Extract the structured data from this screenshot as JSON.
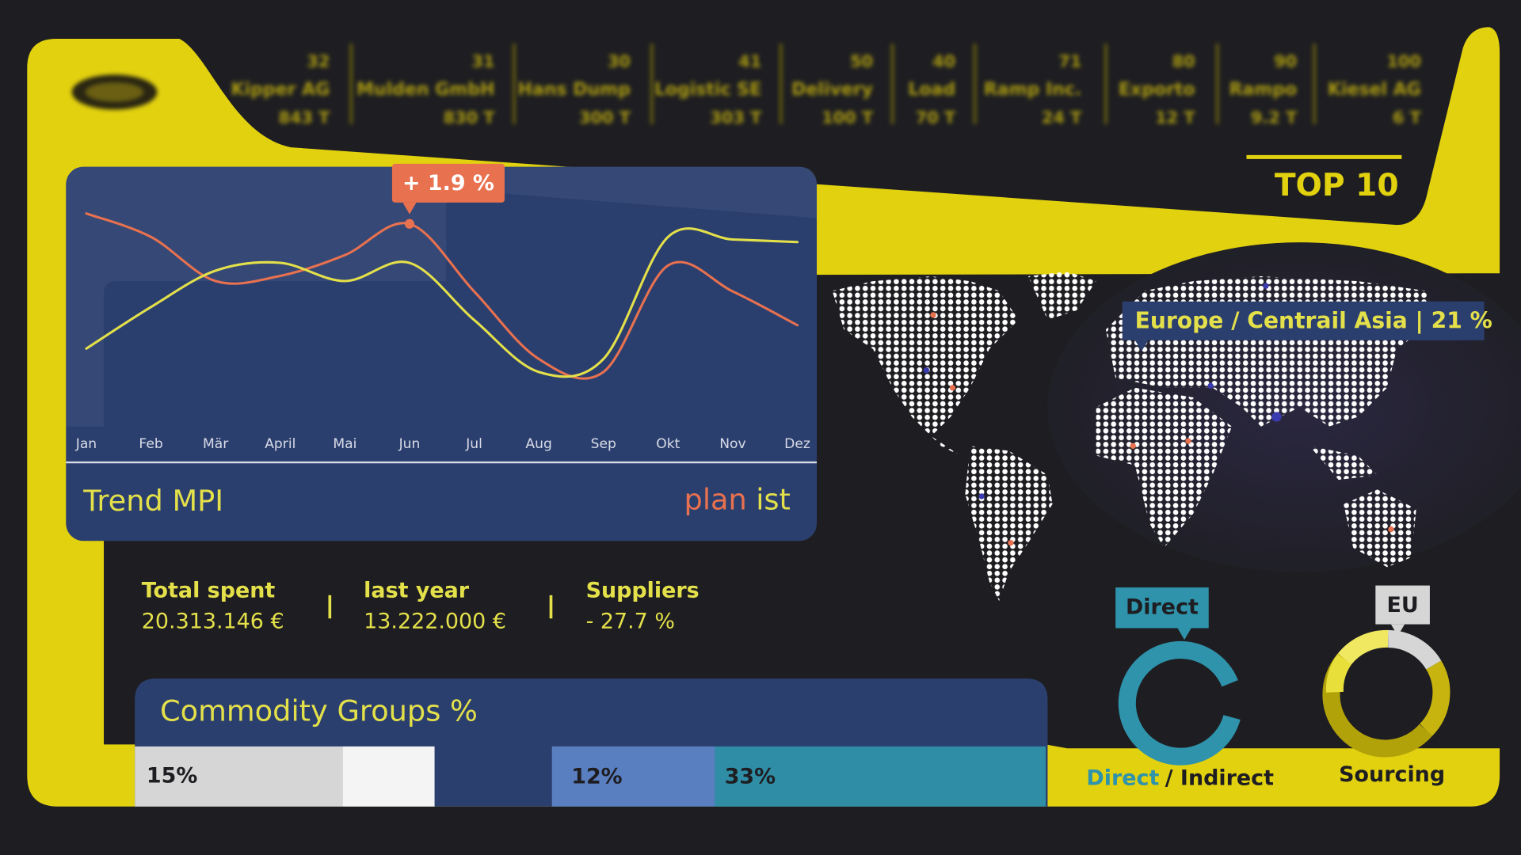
{
  "top10": {
    "title": "TOP 10",
    "items": [
      {
        "rank": "32",
        "name": "Kipper AG",
        "amount": "843 T"
      },
      {
        "rank": "31",
        "name": "Mulden GmbH",
        "amount": "830 T"
      },
      {
        "rank": "30",
        "name": "Hans Dump",
        "amount": "300 T"
      },
      {
        "rank": "41",
        "name": "Logistic SE",
        "amount": "303 T"
      },
      {
        "rank": "50",
        "name": "Delivery",
        "amount": "100 T"
      },
      {
        "rank": "40",
        "name": "Load",
        "amount": "70 T"
      },
      {
        "rank": "71",
        "name": "Ramp Inc.",
        "amount": "24 T"
      },
      {
        "rank": "80",
        "name": "Exporto",
        "amount": "12 T"
      },
      {
        "rank": "90",
        "name": "Rampo",
        "amount": "9.2 T"
      },
      {
        "rank": "100",
        "name": "Kiesel AG",
        "amount": "6 T"
      }
    ]
  },
  "trend": {
    "type": "line",
    "title": "Trend MPI",
    "categories": [
      "Jan",
      "Feb",
      "Mär",
      "April",
      "Mai",
      "Jun",
      "Jul",
      "Aug",
      "Sep",
      "Okt",
      "Nov",
      "Dez"
    ],
    "ylim": [
      0,
      100
    ],
    "series": [
      {
        "name": "plan",
        "color": "#e8714f",
        "values": [
          82,
          73,
          56,
          58,
          66,
          78,
          52,
          26,
          21,
          62,
          52,
          39
        ]
      },
      {
        "name": "ist",
        "color": "#e4e04a",
        "values": [
          30,
          46,
          60,
          63,
          56,
          63,
          41,
          21,
          26,
          73,
          72,
          71
        ]
      }
    ],
    "annotation": "+ 1.9 %"
  },
  "stats": [
    {
      "label": "Total spent",
      "value": "20.313.146 €"
    },
    {
      "label": "last year",
      "value": "13.222.000 €"
    },
    {
      "label": "Suppliers",
      "value": "- 27.7 %"
    }
  ],
  "commodity": {
    "title": "Commodity Groups %",
    "segments": [
      "15%",
      "12%",
      "33%"
    ]
  },
  "map": {
    "tooltip": "Europe / Centrail Asia | 21 %"
  },
  "direct": {
    "badge": "Direct",
    "caption": [
      "Direct",
      "/ Indirect"
    ]
  },
  "sourcing": {
    "badge": "EU",
    "caption": "Sourcing"
  }
}
